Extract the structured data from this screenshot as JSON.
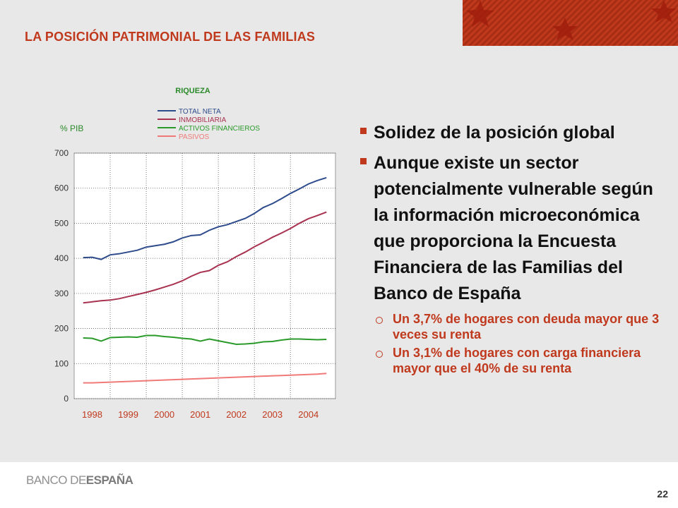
{
  "slide": {
    "title": "LA POSICIÓN PATRIMONIAL DE LAS FAMILIAS",
    "page_number": "22",
    "logo": {
      "part1": "BANCO DE",
      "part2": "ESPAÑA"
    }
  },
  "bullets": [
    {
      "text": "Solidez de la posición global"
    },
    {
      "text": "Aunque existe un sector potencialmente vulnerable según la información microeconómica que proporciona la Encuesta Financiera de las Familias del Banco de España"
    }
  ],
  "sub_bullets": [
    {
      "text": "Un  3,7% de hogares con deuda mayor que 3 veces su renta"
    },
    {
      "text": "Un 3,1% de hogares con carga financiera mayor que el 40% de su renta"
    }
  ],
  "colors": {
    "accent": "#c0391d",
    "total": "#2e4b8b",
    "inmob": "#a83250",
    "activos": "#2a9a2a",
    "pasivos": "#f07a78"
  },
  "chart_data": {
    "type": "line",
    "title": "RIQUEZA",
    "ylabel": "% PIB",
    "ylim": [
      0,
      700
    ],
    "yticks": [
      0,
      100,
      200,
      300,
      400,
      500,
      600,
      700
    ],
    "xlim": [
      1997.5,
      2004.75
    ],
    "xticks": [
      1998,
      1999,
      2000,
      2001,
      2002,
      2003,
      2004
    ],
    "grid": true,
    "legend_position": "top",
    "x": [
      1997.75,
      1998.0,
      1998.25,
      1998.5,
      1998.75,
      1999.0,
      1999.25,
      1999.5,
      1999.75,
      2000.0,
      2000.25,
      2000.5,
      2000.75,
      2001.0,
      2001.25,
      2001.5,
      2001.75,
      2002.0,
      2002.25,
      2002.5,
      2002.75,
      2003.0,
      2003.25,
      2003.5,
      2003.75,
      2004.0,
      2004.25,
      2004.5
    ],
    "series": [
      {
        "name": "TOTAL NETA",
        "color": "#2e4b8b",
        "values": [
          402,
          403,
          397,
          410,
          413,
          418,
          423,
          432,
          436,
          440,
          447,
          458,
          465,
          467,
          480,
          490,
          496,
          505,
          514,
          528,
          545,
          556,
          570,
          585,
          598,
          612,
          622,
          630
        ]
      },
      {
        "name": "INMOBILIARIA",
        "color": "#a83250",
        "values": [
          273,
          276,
          279,
          281,
          285,
          291,
          297,
          303,
          310,
          318,
          326,
          336,
          349,
          360,
          365,
          380,
          390,
          405,
          418,
          433,
          446,
          460,
          472,
          485,
          500,
          513,
          522,
          532
        ]
      },
      {
        "name": "ACTIVOS FINANCIEROS",
        "color": "#2a9a2a",
        "values": [
          173,
          172,
          164,
          174,
          175,
          176,
          175,
          180,
          180,
          177,
          175,
          172,
          170,
          164,
          170,
          165,
          160,
          155,
          156,
          158,
          162,
          163,
          167,
          170,
          170,
          169,
          168,
          169
        ]
      },
      {
        "name": "PASIVOS",
        "color": "#f07a78",
        "values": [
          45,
          45,
          46,
          47,
          48,
          49,
          50,
          51,
          52,
          53,
          54,
          55,
          56,
          57,
          58,
          59,
          60,
          61,
          62,
          63,
          64,
          65,
          66,
          67,
          68,
          69,
          70,
          72
        ]
      }
    ]
  }
}
